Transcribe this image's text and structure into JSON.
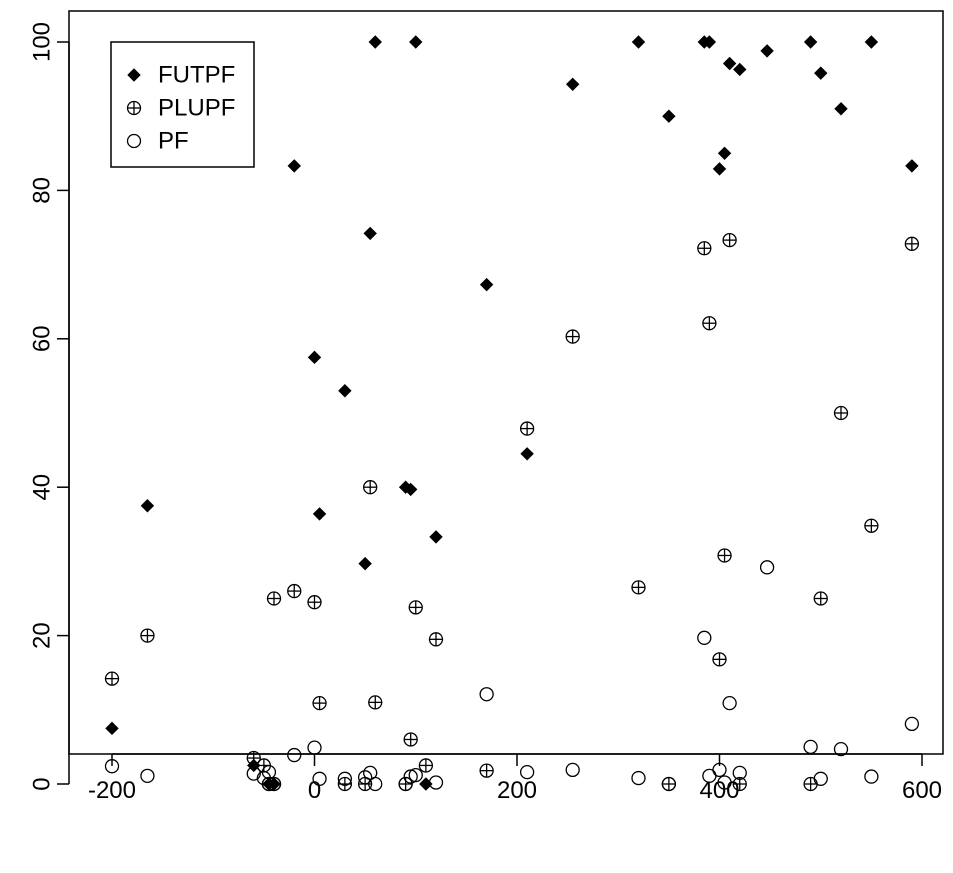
{
  "chart_data": {
    "type": "scatter",
    "title": "",
    "xlabel": "",
    "ylabel": "",
    "xlim": [
      -240,
      610
    ],
    "ylim": [
      -5,
      104
    ],
    "x_ticks": [
      -200,
      0,
      200,
      400,
      600
    ],
    "y_ticks": [
      0,
      20,
      40,
      60,
      80,
      100
    ],
    "x_tick_labels": [
      "-200",
      "0",
      "200",
      "400",
      "600"
    ],
    "y_tick_labels": [
      "0",
      "20",
      "40",
      "60",
      "80",
      "100"
    ],
    "grid": false,
    "legend_position": "top-left",
    "series": [
      {
        "name": "FUTPF",
        "marker": "filled-diamond",
        "color": "#000000",
        "points": [
          [
            -200,
            7.5
          ],
          [
            -165,
            37.5
          ],
          [
            -20,
            83.3
          ],
          [
            0,
            57.5
          ],
          [
            5,
            36.4
          ],
          [
            30,
            53
          ],
          [
            50,
            29.7
          ],
          [
            55,
            74.2
          ],
          [
            60,
            100
          ],
          [
            90,
            40
          ],
          [
            95,
            39.7
          ],
          [
            100,
            100
          ],
          [
            110,
            0
          ],
          [
            120,
            33.3
          ],
          [
            170,
            67.3
          ],
          [
            210,
            44.5
          ],
          [
            255,
            94.3
          ],
          [
            320,
            100
          ],
          [
            350,
            90
          ],
          [
            385,
            100
          ],
          [
            390,
            100
          ],
          [
            400,
            82.9
          ],
          [
            405,
            85
          ],
          [
            410,
            97.1
          ],
          [
            420,
            96.3
          ],
          [
            447,
            98.8
          ],
          [
            490,
            100
          ],
          [
            500,
            95.8
          ],
          [
            520,
            91
          ],
          [
            550,
            100
          ],
          [
            590,
            83.3
          ],
          [
            -60,
            2.5
          ],
          [
            -45,
            0
          ],
          [
            -40,
            0
          ]
        ]
      },
      {
        "name": "PLUPF",
        "marker": "circle-plus",
        "color": "#000000",
        "points": [
          [
            -200,
            14.2
          ],
          [
            -165,
            20
          ],
          [
            -60,
            3.5
          ],
          [
            -50,
            2.5
          ],
          [
            -45,
            0
          ],
          [
            -40,
            25
          ],
          [
            -40,
            0
          ],
          [
            -20,
            26
          ],
          [
            0,
            24.5
          ],
          [
            5,
            10.9
          ],
          [
            30,
            0
          ],
          [
            50,
            0
          ],
          [
            55,
            40
          ],
          [
            60,
            11
          ],
          [
            90,
            0
          ],
          [
            95,
            6
          ],
          [
            100,
            23.8
          ],
          [
            110,
            2.5
          ],
          [
            120,
            19.5
          ],
          [
            170,
            1.8
          ],
          [
            210,
            47.9
          ],
          [
            255,
            60.3
          ],
          [
            320,
            26.5
          ],
          [
            350,
            0
          ],
          [
            385,
            72.2
          ],
          [
            390,
            62.1
          ],
          [
            400,
            16.8
          ],
          [
            405,
            30.8
          ],
          [
            410,
            73.3
          ],
          [
            420,
            0
          ],
          [
            490,
            0
          ],
          [
            500,
            25
          ],
          [
            520,
            50
          ],
          [
            550,
            34.8
          ],
          [
            590,
            72.8
          ]
        ]
      },
      {
        "name": "PF",
        "marker": "open-circle",
        "color": "#000000",
        "points": [
          [
            -200,
            2.4
          ],
          [
            -165,
            1.1
          ],
          [
            -60,
            1.4
          ],
          [
            -50,
            0.8
          ],
          [
            -45,
            1.6
          ],
          [
            -45,
            0
          ],
          [
            -40,
            0
          ],
          [
            -20,
            3.9
          ],
          [
            0,
            4.9
          ],
          [
            5,
            0.7
          ],
          [
            30,
            0.7
          ],
          [
            50,
            0.9
          ],
          [
            55,
            1.5
          ],
          [
            60,
            0
          ],
          [
            90,
            0
          ],
          [
            95,
            1
          ],
          [
            100,
            1.2
          ],
          [
            120,
            0.2
          ],
          [
            170,
            12.1
          ],
          [
            210,
            1.6
          ],
          [
            255,
            1.9
          ],
          [
            320,
            0.8
          ],
          [
            350,
            0
          ],
          [
            385,
            19.7
          ],
          [
            390,
            1.1
          ],
          [
            400,
            1.9
          ],
          [
            405,
            0.2
          ],
          [
            410,
            10.9
          ],
          [
            420,
            1.5
          ],
          [
            447,
            29.2
          ],
          [
            490,
            5
          ],
          [
            500,
            0.7
          ],
          [
            520,
            4.7
          ],
          [
            550,
            1
          ],
          [
            590,
            8.1
          ]
        ]
      }
    ]
  }
}
